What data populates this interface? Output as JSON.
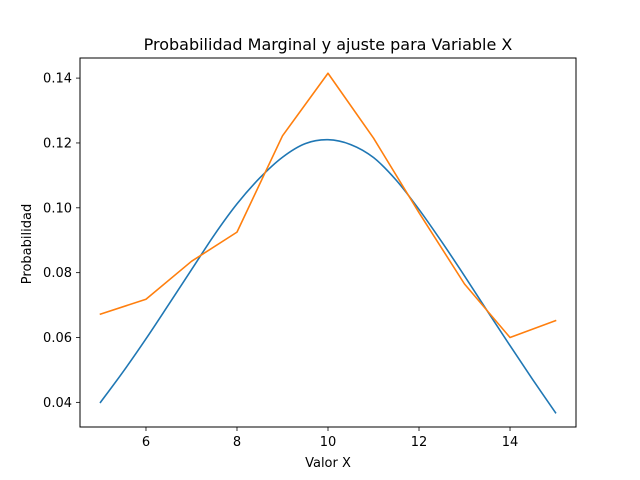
{
  "chart_data": {
    "type": "line",
    "title": "Probabilidad Marginal y ajuste para Variable X",
    "xlabel": "Valor X",
    "ylabel": "Probabilidad",
    "xlim": [
      4.55,
      15.45
    ],
    "ylim": [
      0.0324,
      0.1462
    ],
    "xticks": [
      6,
      8,
      10,
      12,
      14
    ],
    "yticks": [
      0.04,
      0.06,
      0.08,
      0.1,
      0.12,
      0.14
    ],
    "xtick_labels": [
      "6",
      "8",
      "10",
      "12",
      "14"
    ],
    "ytick_labels": [
      "0.04",
      "0.06",
      "0.08",
      "0.10",
      "0.12",
      "0.14"
    ],
    "grid": false,
    "legend": "none",
    "series": [
      {
        "color": "#1f77b4",
        "style": "smooth",
        "x": [
          5,
          5.5,
          6,
          6.5,
          7,
          7.5,
          8,
          8.5,
          9,
          9.5,
          10,
          10.5,
          11,
          11.5,
          12,
          12.5,
          13,
          13.5,
          14,
          14.5,
          15
        ],
        "y": [
          0.04,
          0.0495,
          0.0596,
          0.0702,
          0.0809,
          0.0916,
          0.1012,
          0.1092,
          0.1156,
          0.1198,
          0.121,
          0.1195,
          0.1155,
          0.1085,
          0.0995,
          0.0895,
          0.079,
          0.0682,
          0.0575,
          0.047,
          0.0368
        ]
      },
      {
        "color": "#ff7f0e",
        "style": "straight",
        "x": [
          5,
          6,
          7,
          8,
          9,
          10,
          11,
          12,
          13,
          14,
          15
        ],
        "y": [
          0.0672,
          0.0718,
          0.0835,
          0.0925,
          0.1222,
          0.1415,
          0.1215,
          0.0985,
          0.0765,
          0.06,
          0.0652
        ]
      }
    ]
  }
}
